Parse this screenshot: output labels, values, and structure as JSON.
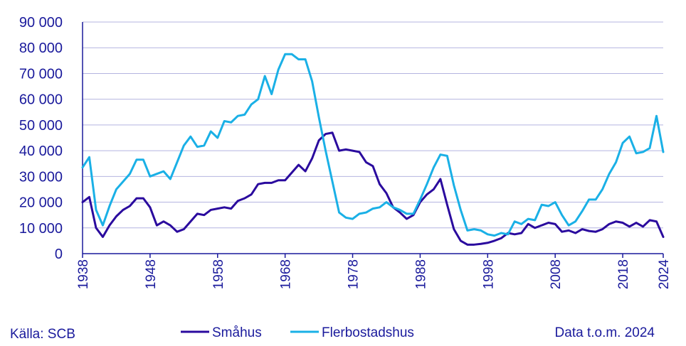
{
  "chart_data": {
    "type": "line",
    "title": "",
    "xlabel": "",
    "ylabel": "",
    "xlim": [
      1938,
      2024
    ],
    "ylim": [
      0,
      90000
    ],
    "x_ticks": [
      1938,
      1948,
      1958,
      1968,
      1978,
      1988,
      1998,
      2008,
      2018,
      2024
    ],
    "x_tick_labels": [
      "1938",
      "1948",
      "1958",
      "1968",
      "1978",
      "1988",
      "1998",
      "2008",
      "2018",
      "2024"
    ],
    "y_ticks": [
      0,
      10000,
      20000,
      30000,
      40000,
      50000,
      60000,
      70000,
      80000,
      90000
    ],
    "y_tick_labels": [
      "0",
      "10 000",
      "20 000",
      "30 000",
      "40 000",
      "50 000",
      "60 000",
      "70 000",
      "80 000",
      "90 000"
    ],
    "grid": true,
    "legend_position": "bottom-center",
    "colors": {
      "axis_text": "#1a1a9c",
      "grid": "#b4b4e0",
      "axis_line": "#1a1a9c"
    },
    "x": [
      1938,
      1939,
      1940,
      1941,
      1942,
      1943,
      1944,
      1945,
      1946,
      1947,
      1948,
      1949,
      1950,
      1951,
      1952,
      1953,
      1954,
      1955,
      1956,
      1957,
      1958,
      1959,
      1960,
      1961,
      1962,
      1963,
      1964,
      1965,
      1966,
      1967,
      1968,
      1969,
      1970,
      1971,
      1972,
      1973,
      1974,
      1975,
      1976,
      1977,
      1978,
      1979,
      1980,
      1981,
      1982,
      1983,
      1984,
      1985,
      1986,
      1987,
      1988,
      1989,
      1990,
      1991,
      1992,
      1993,
      1994,
      1995,
      1996,
      1997,
      1998,
      1999,
      2000,
      2001,
      2002,
      2003,
      2004,
      2005,
      2006,
      2007,
      2008,
      2009,
      2010,
      2011,
      2012,
      2013,
      2014,
      2015,
      2016,
      2017,
      2018,
      2019,
      2020,
      2021,
      2022,
      2023,
      2024
    ],
    "series": [
      {
        "name": "Småhus",
        "color": "#2a0a9e",
        "values": [
          20000,
          22000,
          10000,
          6500,
          11000,
          14500,
          17000,
          18500,
          21500,
          21500,
          18000,
          11000,
          12500,
          11000,
          8500,
          9500,
          12500,
          15500,
          15000,
          17000,
          17500,
          18000,
          17500,
          20500,
          21500,
          23000,
          27000,
          27500,
          27500,
          28500,
          28500,
          31500,
          34500,
          32000,
          37000,
          44000,
          46500,
          47000,
          40000,
          40500,
          40000,
          39500,
          35500,
          34000,
          27000,
          23500,
          18000,
          16000,
          13500,
          15000,
          20000,
          23000,
          25000,
          29000,
          19000,
          9500,
          5000,
          3500,
          3500,
          3800,
          4200,
          5000,
          6000,
          8000,
          7500,
          8000,
          11500,
          10000,
          11000,
          12000,
          11500,
          8500,
          9000,
          8000,
          9500,
          8800,
          8500,
          9500,
          11500,
          12500,
          12000,
          10500,
          12000,
          10500,
          13000,
          12500,
          6500
        ]
      },
      {
        "name": "Flerbostadshus",
        "color": "#1ab0e6",
        "values": [
          33500,
          37500,
          17000,
          11000,
          18500,
          25000,
          28000,
          31000,
          36500,
          36500,
          30000,
          31000,
          32000,
          29000,
          35500,
          42000,
          45500,
          41500,
          42000,
          47500,
          45000,
          51500,
          51000,
          53500,
          54000,
          58000,
          60000,
          69000,
          62000,
          71500,
          77500,
          77500,
          75500,
          75500,
          67000,
          53000,
          40000,
          28000,
          16000,
          14000,
          13500,
          15500,
          16000,
          17500,
          18000,
          20000,
          18000,
          17000,
          15500,
          15500,
          21000,
          27000,
          33500,
          38500,
          38000,
          26500,
          17000,
          9000,
          9500,
          9000,
          7500,
          7000,
          8000,
          7500,
          12500,
          11500,
          13500,
          13000,
          19000,
          18500,
          20000,
          15000,
          11000,
          12500,
          16500,
          21000,
          21000,
          25000,
          31000,
          35500,
          43000,
          45500,
          39000,
          39500,
          41000,
          53500,
          39500
        ]
      }
    ],
    "legend": [
      {
        "label": "Småhus",
        "color": "#2a0a9e"
      },
      {
        "label": "Flerbostadshus",
        "color": "#1ab0e6"
      }
    ],
    "source_text": "Källa: SCB",
    "data_note": "Data t.o.m. 2024"
  }
}
